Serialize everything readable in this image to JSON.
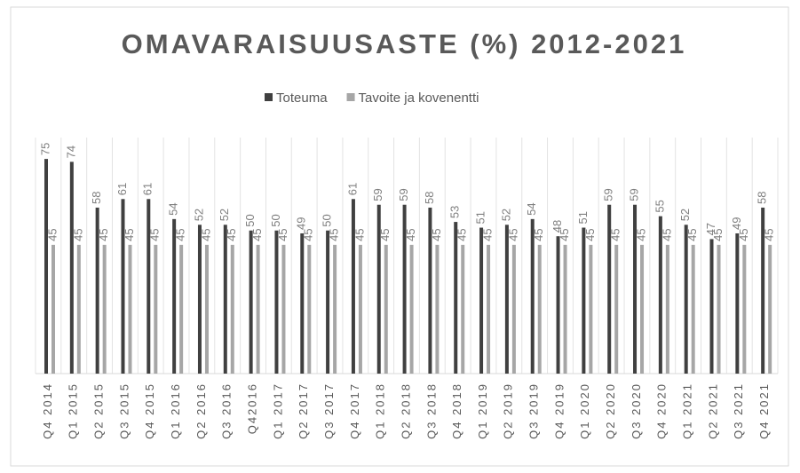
{
  "chart_data": {
    "type": "bar",
    "title": "OMAVARAISUUSASTE (%) 2012-2021",
    "categories": [
      "Q4 2014",
      "Q1 2015",
      "Q2 2015",
      "Q3 2015",
      "Q4 2015",
      "Q1 2016",
      "Q2 2016",
      "Q3 2016",
      "Q42016",
      "Q1 2017",
      "Q2 2017",
      "Q3 2017",
      "Q4 2017",
      "Q1 2018",
      "Q2 2018",
      "Q3 2018",
      "Q4 2018",
      "Q1 2019",
      "Q2 2019",
      "Q3 2019",
      "Q4 2019",
      "Q1 2020",
      "Q2 2020",
      "Q3 2020",
      "Q4 2020",
      "Q1 2021",
      "Q2 2021",
      "Q3 2021",
      "Q4 2021"
    ],
    "series": [
      {
        "name": "Toteuma",
        "color": "#404040",
        "values": [
          75,
          74,
          58,
          61,
          61,
          54,
          52,
          52,
          50,
          50,
          49,
          50,
          61,
          59,
          59,
          58,
          53,
          51,
          52,
          54,
          48,
          51,
          59,
          59,
          55,
          52,
          47,
          49,
          58
        ]
      },
      {
        "name": "Tavoite ja kovenentti",
        "color": "#a6a6a6",
        "values": [
          45,
          45,
          45,
          45,
          45,
          45,
          45,
          45,
          45,
          45,
          45,
          45,
          45,
          45,
          45,
          45,
          45,
          45,
          45,
          45,
          45,
          45,
          45,
          45,
          45,
          45,
          45,
          45,
          45
        ]
      }
    ],
    "ylim": [
      0,
      80
    ],
    "legend": "top"
  }
}
